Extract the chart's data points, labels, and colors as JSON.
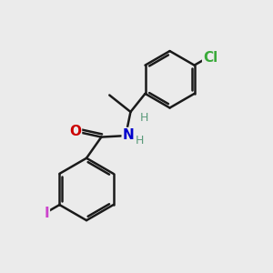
{
  "bg_color": "#ebebeb",
  "bond_color": "#1a1a1a",
  "bond_width": 1.8,
  "atom_labels": {
    "O": {
      "color": "#cc0000",
      "fontsize": 11,
      "fontweight": "bold"
    },
    "N": {
      "color": "#0000cc",
      "fontsize": 11,
      "fontweight": "bold"
    },
    "H_gray": {
      "color": "#5a9a7a",
      "fontsize": 9,
      "fontweight": "normal"
    },
    "Cl": {
      "color": "#3aaa3a",
      "fontsize": 11,
      "fontweight": "bold"
    },
    "I": {
      "color": "#cc44cc",
      "fontsize": 11,
      "fontweight": "bold"
    }
  },
  "figsize": [
    3.0,
    3.0
  ],
  "dpi": 100
}
